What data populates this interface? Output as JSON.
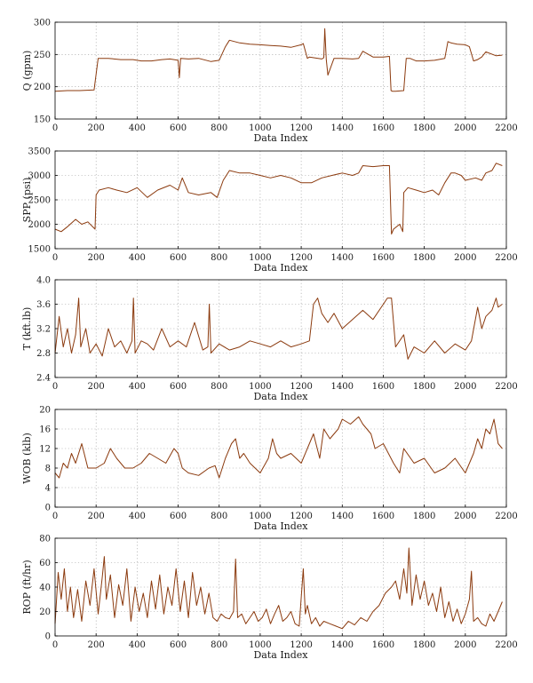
{
  "colors": {
    "series": "#8B3A0E",
    "grid": "#9a9a9a",
    "axis": "#000000"
  },
  "chart_data": [
    {
      "type": "line",
      "ylabel": "Q (gpm)",
      "xlabel": "Data Index",
      "xlim": [
        0,
        2200
      ],
      "ylim": [
        150,
        300
      ],
      "xticks": [
        0,
        200,
        400,
        600,
        800,
        1000,
        1200,
        1400,
        1600,
        1800,
        2000,
        2200
      ],
      "yticks": [
        150,
        200,
        250,
        300
      ],
      "grid": true,
      "series": [
        {
          "x": [
            0,
            60,
            120,
            190,
            210,
            260,
            320,
            380,
            420,
            470,
            520,
            560,
            600,
            606,
            612,
            650,
            700,
            760,
            800,
            830,
            850,
            900,
            950,
            1000,
            1050,
            1100,
            1150,
            1200,
            1210,
            1230,
            1240,
            1300,
            1310,
            1315,
            1322,
            1330,
            1360,
            1380,
            1400,
            1450,
            1480,
            1500,
            1550,
            1600,
            1630,
            1638,
            1645,
            1660,
            1700,
            1712,
            1730,
            1760,
            1800,
            1850,
            1900,
            1915,
            1930,
            1960,
            2000,
            2020,
            2040,
            2060,
            2080,
            2100,
            2150,
            2180
          ],
          "y": [
            193,
            194,
            194,
            195,
            244,
            244,
            242,
            242,
            240,
            240,
            242,
            243,
            241,
            214,
            244,
            243,
            244,
            239,
            241,
            262,
            272,
            268,
            266,
            265,
            264,
            263,
            261,
            265,
            267,
            244,
            246,
            243,
            245,
            290,
            242,
            218,
            244,
            244,
            244,
            243,
            244,
            255,
            246,
            246,
            247,
            194,
            193,
            193,
            194,
            244,
            244,
            240,
            240,
            241,
            244,
            270,
            268,
            266,
            265,
            262,
            240,
            242,
            246,
            254,
            248,
            249
          ]
        }
      ]
    },
    {
      "type": "line",
      "ylabel": "SPP (psi)",
      "xlabel": "Data Index",
      "xlim": [
        0,
        2200
      ],
      "ylim": [
        1500,
        3500
      ],
      "xticks": [
        0,
        200,
        400,
        600,
        800,
        1000,
        1200,
        1400,
        1600,
        1800,
        2000,
        2200
      ],
      "yticks": [
        1500,
        2000,
        2500,
        3000,
        3500
      ],
      "grid": true,
      "series": [
        {
          "x": [
            0,
            30,
            60,
            100,
            130,
            160,
            195,
            200,
            215,
            260,
            300,
            350,
            400,
            450,
            500,
            560,
            600,
            620,
            650,
            700,
            760,
            790,
            820,
            850,
            900,
            950,
            1000,
            1050,
            1100,
            1150,
            1200,
            1250,
            1300,
            1350,
            1400,
            1450,
            1480,
            1500,
            1550,
            1600,
            1630,
            1640,
            1650,
            1680,
            1695,
            1700,
            1720,
            1760,
            1800,
            1840,
            1870,
            1900,
            1930,
            1950,
            1980,
            2000,
            2050,
            2080,
            2100,
            2130,
            2150,
            2180
          ],
          "y": [
            1900,
            1850,
            1950,
            2100,
            2000,
            2050,
            1900,
            2600,
            2700,
            2750,
            2700,
            2650,
            2750,
            2550,
            2700,
            2800,
            2700,
            2950,
            2650,
            2600,
            2650,
            2550,
            2900,
            3100,
            3050,
            3050,
            3000,
            2950,
            3000,
            2950,
            2850,
            2850,
            2950,
            3000,
            3050,
            3000,
            3050,
            3200,
            3180,
            3200,
            3200,
            1800,
            1900,
            2000,
            1850,
            2650,
            2750,
            2700,
            2650,
            2700,
            2600,
            2850,
            3050,
            3050,
            3000,
            2900,
            2950,
            2900,
            3050,
            3100,
            3250,
            3200
          ]
        }
      ]
    },
    {
      "type": "line",
      "ylabel": "T (kft.lb)",
      "xlabel": "Data Index",
      "xlim": [
        0,
        2200
      ],
      "ylim": [
        2.4,
        4.0
      ],
      "xticks": [
        0,
        200,
        400,
        600,
        800,
        1000,
        1200,
        1400,
        1600,
        1800,
        2000,
        2200
      ],
      "yticks": [
        2.4,
        2.8,
        3.2,
        3.6,
        4.0
      ],
      "grid": true,
      "series": [
        {
          "x": [
            0,
            20,
            40,
            60,
            80,
            100,
            115,
            125,
            150,
            170,
            200,
            230,
            260,
            290,
            320,
            350,
            375,
            382,
            390,
            420,
            450,
            480,
            520,
            560,
            600,
            640,
            680,
            720,
            745,
            752,
            760,
            800,
            850,
            900,
            950,
            1000,
            1050,
            1100,
            1150,
            1200,
            1240,
            1260,
            1280,
            1300,
            1330,
            1360,
            1400,
            1450,
            1500,
            1550,
            1600,
            1620,
            1640,
            1660,
            1700,
            1720,
            1750,
            1800,
            1850,
            1900,
            1950,
            2000,
            2030,
            2060,
            2080,
            2100,
            2130,
            2150,
            2160,
            2180
          ],
          "y": [
            2.8,
            3.4,
            2.9,
            3.2,
            2.8,
            3.1,
            3.7,
            2.9,
            3.2,
            2.8,
            2.95,
            2.75,
            3.2,
            2.9,
            3.0,
            2.8,
            3.0,
            3.7,
            2.8,
            3.0,
            2.95,
            2.85,
            3.2,
            2.9,
            3.0,
            2.9,
            3.3,
            2.85,
            2.9,
            3.6,
            2.8,
            2.95,
            2.85,
            2.9,
            3.0,
            2.95,
            2.9,
            3.0,
            2.9,
            2.95,
            3.0,
            3.6,
            3.7,
            3.45,
            3.3,
            3.45,
            3.2,
            3.35,
            3.5,
            3.35,
            3.6,
            3.7,
            3.7,
            2.9,
            3.1,
            2.7,
            2.9,
            2.8,
            3.0,
            2.8,
            2.95,
            2.85,
            3.0,
            3.55,
            3.2,
            3.4,
            3.5,
            3.7,
            3.55,
            3.6
          ]
        }
      ]
    },
    {
      "type": "line",
      "ylabel": "WOB (klb)",
      "xlabel": "Data Index",
      "xlim": [
        0,
        2200
      ],
      "ylim": [
        0,
        20
      ],
      "xticks": [
        0,
        200,
        400,
        600,
        800,
        1000,
        1200,
        1400,
        1600,
        1800,
        2000,
        2200
      ],
      "yticks": [
        0,
        4,
        8,
        12,
        16,
        20
      ],
      "grid": true,
      "series": [
        {
          "x": [
            0,
            20,
            40,
            60,
            80,
            100,
            130,
            160,
            200,
            240,
            270,
            300,
            340,
            380,
            420,
            460,
            500,
            540,
            580,
            600,
            620,
            650,
            700,
            750,
            780,
            800,
            830,
            860,
            880,
            900,
            920,
            950,
            1000,
            1040,
            1060,
            1080,
            1100,
            1150,
            1200,
            1230,
            1260,
            1290,
            1310,
            1340,
            1380,
            1400,
            1440,
            1480,
            1500,
            1540,
            1560,
            1600,
            1650,
            1680,
            1700,
            1750,
            1800,
            1850,
            1900,
            1950,
            2000,
            2040,
            2060,
            2080,
            2100,
            2120,
            2140,
            2160,
            2180
          ],
          "y": [
            7,
            6,
            9,
            8,
            11,
            9,
            13,
            8,
            8,
            9,
            12,
            10,
            8,
            8,
            9,
            11,
            10,
            9,
            12,
            11,
            8,
            7,
            6.5,
            8,
            8.5,
            6,
            10,
            13,
            14,
            10,
            11,
            9,
            7,
            10,
            14,
            11,
            10,
            11,
            9,
            12,
            15,
            10,
            16,
            14,
            16,
            18,
            17,
            18.5,
            17,
            15,
            12,
            13,
            9,
            7,
            12,
            9,
            10,
            7,
            8,
            10,
            7,
            11,
            14,
            12,
            16,
            15,
            18,
            13,
            12
          ]
        }
      ]
    },
    {
      "type": "line",
      "ylabel": "ROP (ft/hr)",
      "xlabel": "Data Index",
      "xlim": [
        0,
        2200
      ],
      "ylim": [
        0,
        80
      ],
      "xticks": [
        0,
        200,
        400,
        600,
        800,
        1000,
        1200,
        1400,
        1600,
        1800,
        2000,
        2200
      ],
      "yticks": [
        0,
        20,
        40,
        60,
        80
      ],
      "grid": true,
      "series": [
        {
          "x": [
            0,
            15,
            30,
            45,
            60,
            75,
            90,
            110,
            130,
            150,
            170,
            190,
            210,
            230,
            240,
            250,
            270,
            290,
            310,
            330,
            350,
            370,
            390,
            410,
            430,
            450,
            470,
            490,
            510,
            530,
            550,
            570,
            590,
            610,
            630,
            650,
            670,
            690,
            710,
            730,
            750,
            770,
            790,
            810,
            830,
            850,
            870,
            880,
            890,
            910,
            930,
            950,
            970,
            990,
            1010,
            1030,
            1050,
            1070,
            1090,
            1110,
            1130,
            1150,
            1170,
            1190,
            1210,
            1220,
            1230,
            1250,
            1270,
            1290,
            1310,
            1340,
            1370,
            1400,
            1430,
            1460,
            1490,
            1520,
            1550,
            1580,
            1610,
            1640,
            1660,
            1680,
            1700,
            1715,
            1725,
            1740,
            1760,
            1780,
            1800,
            1820,
            1840,
            1860,
            1880,
            1900,
            1920,
            1940,
            1960,
            1980,
            2000,
            2020,
            2030,
            2040,
            2060,
            2080,
            2100,
            2120,
            2140,
            2160,
            2180
          ],
          "y": [
            10,
            52,
            30,
            55,
            20,
            40,
            15,
            38,
            12,
            45,
            25,
            55,
            18,
            48,
            65,
            30,
            50,
            15,
            42,
            25,
            55,
            12,
            40,
            20,
            35,
            15,
            45,
            22,
            50,
            18,
            40,
            25,
            55,
            20,
            45,
            15,
            52,
            25,
            40,
            18,
            35,
            15,
            12,
            18,
            15,
            14,
            20,
            63,
            15,
            18,
            10,
            15,
            20,
            12,
            15,
            22,
            10,
            18,
            25,
            12,
            15,
            20,
            10,
            8,
            55,
            18,
            25,
            10,
            15,
            8,
            12,
            10,
            8,
            6,
            12,
            9,
            15,
            12,
            20,
            25,
            35,
            40,
            45,
            30,
            55,
            35,
            72,
            25,
            50,
            30,
            45,
            25,
            35,
            20,
            40,
            15,
            28,
            12,
            22,
            10,
            18,
            30,
            53,
            12,
            15,
            10,
            8,
            18,
            12,
            20,
            28
          ]
        }
      ]
    }
  ]
}
